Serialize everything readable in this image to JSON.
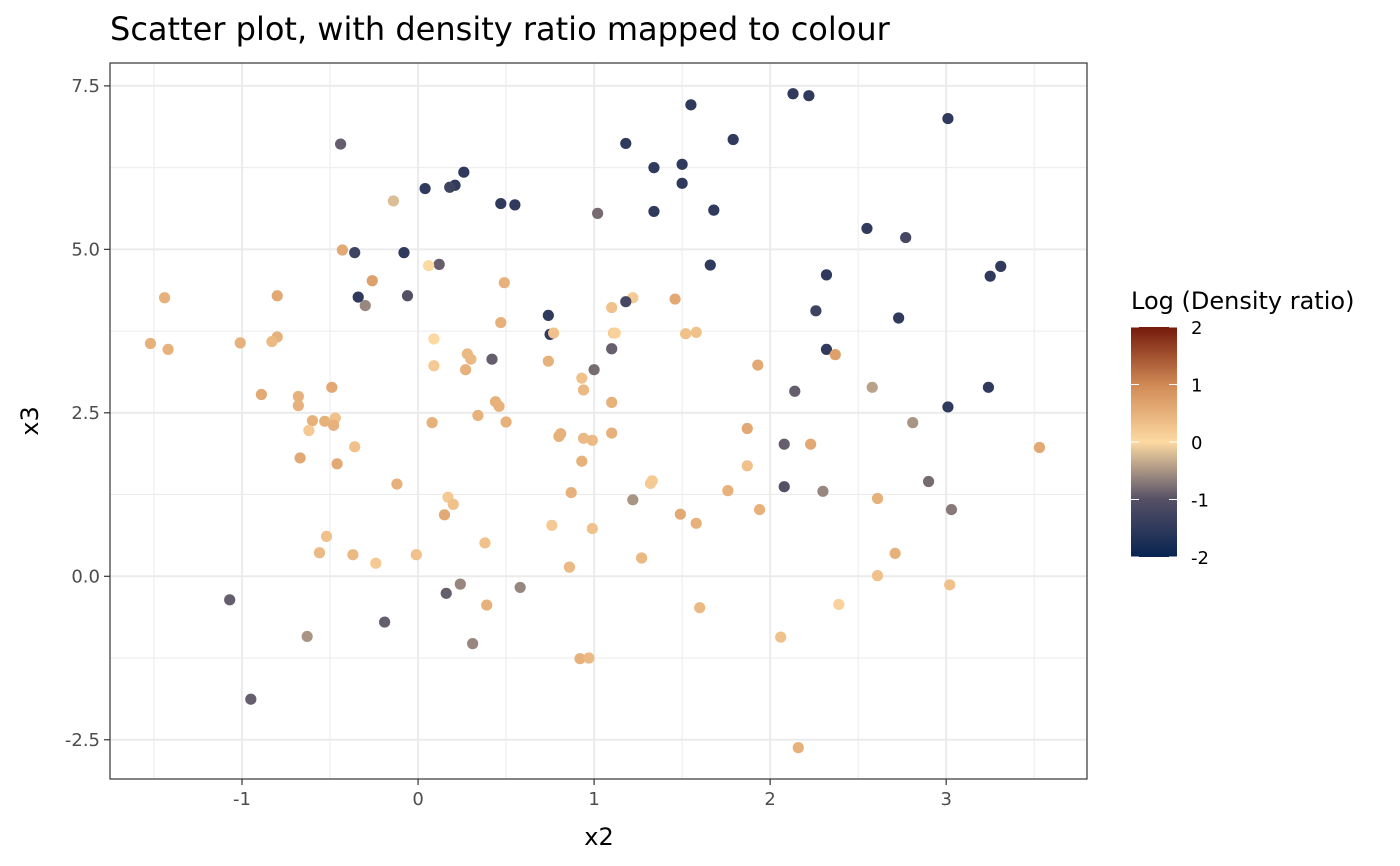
{
  "chart_data": {
    "type": "scatter",
    "title": "Scatter plot, with density ratio mapped to colour",
    "xlabel": "x2",
    "ylabel": "x3",
    "xlim": [
      -1.75,
      3.8
    ],
    "ylim": [
      -3.1,
      7.85
    ],
    "x_ticks": [
      -1,
      0,
      1,
      2,
      3
    ],
    "x_tick_labels": [
      "-1",
      "0",
      "1",
      "2",
      "3"
    ],
    "y_ticks": [
      -2.5,
      0.0,
      2.5,
      5.0,
      7.5
    ],
    "y_tick_labels": [
      "-2.5",
      "0.0",
      "2.5",
      "5.0",
      "7.5"
    ],
    "grid": true,
    "legend": {
      "title": "Log (Density ratio)",
      "placement": "right",
      "range": [
        -2,
        2
      ],
      "ticks": [
        2,
        1,
        0,
        -1,
        -2
      ],
      "tick_labels": [
        "2",
        "1",
        "0",
        "-1",
        "-2"
      ],
      "colors": [
        "#082451",
        "#555066",
        "#FDD9A2",
        "#D08955",
        "#741A0B"
      ]
    },
    "points": [
      {
        "x": 2.13,
        "y": 7.38,
        "c": -1.5
      },
      {
        "x": 2.22,
        "y": 7.35,
        "c": -1.5
      },
      {
        "x": 1.55,
        "y": 7.21,
        "c": -1.5
      },
      {
        "x": 3.01,
        "y": 7.0,
        "c": -1.5
      },
      {
        "x": 1.79,
        "y": 6.68,
        "c": -1.5
      },
      {
        "x": 1.18,
        "y": 6.62,
        "c": -1.5
      },
      {
        "x": -0.44,
        "y": 6.61,
        "c": -0.9
      },
      {
        "x": 1.5,
        "y": 6.3,
        "c": -1.5
      },
      {
        "x": 1.34,
        "y": 6.25,
        "c": -1.5
      },
      {
        "x": 0.26,
        "y": 6.18,
        "c": -1.5
      },
      {
        "x": 1.5,
        "y": 6.01,
        "c": -1.5
      },
      {
        "x": 0.21,
        "y": 5.98,
        "c": -1.5
      },
      {
        "x": 0.18,
        "y": 5.95,
        "c": -1.3
      },
      {
        "x": 0.04,
        "y": 5.93,
        "c": -1.5
      },
      {
        "x": -0.14,
        "y": 5.74,
        "c": -0.2
      },
      {
        "x": 0.47,
        "y": 5.7,
        "c": -1.5
      },
      {
        "x": 0.55,
        "y": 5.68,
        "c": -1.5
      },
      {
        "x": 1.68,
        "y": 5.6,
        "c": -1.5
      },
      {
        "x": 1.34,
        "y": 5.58,
        "c": -1.5
      },
      {
        "x": 1.02,
        "y": 5.55,
        "c": -0.8
      },
      {
        "x": 2.55,
        "y": 5.32,
        "c": -1.5
      },
      {
        "x": 2.77,
        "y": 5.18,
        "c": -1.2
      },
      {
        "x": -0.43,
        "y": 4.99,
        "c": 0.6
      },
      {
        "x": -0.36,
        "y": 4.95,
        "c": -1.3
      },
      {
        "x": -0.08,
        "y": 4.95,
        "c": -1.5
      },
      {
        "x": 0.12,
        "y": 4.77,
        "c": -0.9
      },
      {
        "x": 0.06,
        "y": 4.75,
        "c": 0.0
      },
      {
        "x": 1.66,
        "y": 4.76,
        "c": -1.5
      },
      {
        "x": 3.31,
        "y": 4.74,
        "c": -1.5
      },
      {
        "x": 2.32,
        "y": 4.61,
        "c": -1.5
      },
      {
        "x": 3.25,
        "y": 4.59,
        "c": -1.5
      },
      {
        "x": -0.26,
        "y": 4.52,
        "c": 0.7
      },
      {
        "x": 0.49,
        "y": 4.49,
        "c": 0.5
      },
      {
        "x": -0.8,
        "y": 4.29,
        "c": 0.6
      },
      {
        "x": -0.06,
        "y": 4.29,
        "c": -1.0
      },
      {
        "x": -0.34,
        "y": 4.27,
        "c": -1.5
      },
      {
        "x": -1.44,
        "y": 4.26,
        "c": 0.5
      },
      {
        "x": 1.22,
        "y": 4.26,
        "c": 0.2
      },
      {
        "x": 1.46,
        "y": 4.24,
        "c": 0.6
      },
      {
        "x": 1.18,
        "y": 4.2,
        "c": -1.2
      },
      {
        "x": -0.3,
        "y": 4.14,
        "c": -0.6
      },
      {
        "x": 1.1,
        "y": 4.11,
        "c": 0.3
      },
      {
        "x": 2.26,
        "y": 4.06,
        "c": -1.3
      },
      {
        "x": 0.74,
        "y": 3.99,
        "c": -1.5
      },
      {
        "x": 2.73,
        "y": 3.95,
        "c": -1.5
      },
      {
        "x": 0.47,
        "y": 3.88,
        "c": 0.5
      },
      {
        "x": 0.75,
        "y": 3.7,
        "c": -1.5
      },
      {
        "x": 0.77,
        "y": 3.72,
        "c": 0.3
      },
      {
        "x": 1.11,
        "y": 3.72,
        "c": 0.2
      },
      {
        "x": 1.12,
        "y": 3.72,
        "c": 0.1
      },
      {
        "x": 1.52,
        "y": 3.71,
        "c": 0.3
      },
      {
        "x": 1.58,
        "y": 3.73,
        "c": 0.3
      },
      {
        "x": -0.8,
        "y": 3.66,
        "c": 0.5
      },
      {
        "x": 0.09,
        "y": 3.63,
        "c": 0.0
      },
      {
        "x": -0.83,
        "y": 3.59,
        "c": 0.4
      },
      {
        "x": -1.52,
        "y": 3.56,
        "c": 0.5
      },
      {
        "x": -1.01,
        "y": 3.57,
        "c": 0.5
      },
      {
        "x": 1.1,
        "y": 3.48,
        "c": -0.9
      },
      {
        "x": 2.32,
        "y": 3.47,
        "c": -1.5
      },
      {
        "x": -1.42,
        "y": 3.47,
        "c": 0.5
      },
      {
        "x": 2.37,
        "y": 3.39,
        "c": 0.7
      },
      {
        "x": 0.28,
        "y": 3.4,
        "c": 0.4
      },
      {
        "x": 0.42,
        "y": 3.32,
        "c": -0.9
      },
      {
        "x": 0.3,
        "y": 3.32,
        "c": 0.4
      },
      {
        "x": 0.74,
        "y": 3.29,
        "c": 0.5
      },
      {
        "x": 1.93,
        "y": 3.23,
        "c": 0.6
      },
      {
        "x": 0.09,
        "y": 3.22,
        "c": 0.2
      },
      {
        "x": 0.27,
        "y": 3.16,
        "c": 0.5
      },
      {
        "x": 1.0,
        "y": 3.16,
        "c": -0.8
      },
      {
        "x": 0.93,
        "y": 3.03,
        "c": 0.3
      },
      {
        "x": 2.58,
        "y": 2.89,
        "c": -0.4
      },
      {
        "x": -0.49,
        "y": 2.89,
        "c": 0.6
      },
      {
        "x": 0.94,
        "y": 2.85,
        "c": 0.4
      },
      {
        "x": 2.14,
        "y": 2.83,
        "c": -0.9
      },
      {
        "x": -0.89,
        "y": 2.78,
        "c": 0.6
      },
      {
        "x": -0.68,
        "y": 2.75,
        "c": 0.5
      },
      {
        "x": 1.1,
        "y": 2.66,
        "c": 0.5
      },
      {
        "x": 0.44,
        "y": 2.67,
        "c": 0.5
      },
      {
        "x": -0.68,
        "y": 2.61,
        "c": 0.5
      },
      {
        "x": 0.46,
        "y": 2.6,
        "c": 0.5
      },
      {
        "x": 3.24,
        "y": 2.89,
        "c": -1.5
      },
      {
        "x": 3.01,
        "y": 2.59,
        "c": -1.5
      },
      {
        "x": 0.34,
        "y": 2.46,
        "c": 0.5
      },
      {
        "x": -0.47,
        "y": 2.42,
        "c": 0.3
      },
      {
        "x": -0.6,
        "y": 2.38,
        "c": 0.5
      },
      {
        "x": -0.53,
        "y": 2.37,
        "c": 0.5
      },
      {
        "x": 0.5,
        "y": 2.36,
        "c": 0.5
      },
      {
        "x": 2.81,
        "y": 2.35,
        "c": -0.5
      },
      {
        "x": 0.08,
        "y": 2.35,
        "c": 0.5
      },
      {
        "x": -0.48,
        "y": 2.31,
        "c": 0.5
      },
      {
        "x": 1.87,
        "y": 2.26,
        "c": 0.6
      },
      {
        "x": -0.62,
        "y": 2.23,
        "c": 0.2
      },
      {
        "x": 1.1,
        "y": 2.19,
        "c": 0.5
      },
      {
        "x": 0.81,
        "y": 2.18,
        "c": 0.5
      },
      {
        "x": 0.8,
        "y": 2.14,
        "c": 0.5
      },
      {
        "x": 0.94,
        "y": 2.11,
        "c": 0.4
      },
      {
        "x": 0.99,
        "y": 2.08,
        "c": 0.4
      },
      {
        "x": 2.08,
        "y": 2.02,
        "c": -0.9
      },
      {
        "x": 2.23,
        "y": 2.02,
        "c": 0.6
      },
      {
        "x": -0.36,
        "y": 1.98,
        "c": 0.3
      },
      {
        "x": 3.53,
        "y": 1.97,
        "c": 0.6
      },
      {
        "x": -0.67,
        "y": 1.81,
        "c": 0.6
      },
      {
        "x": 0.93,
        "y": 1.76,
        "c": 0.5
      },
      {
        "x": -0.46,
        "y": 1.72,
        "c": 0.6
      },
      {
        "x": 1.87,
        "y": 1.69,
        "c": 0.3
      },
      {
        "x": 1.33,
        "y": 1.46,
        "c": 0.2
      },
      {
        "x": 1.32,
        "y": 1.42,
        "c": 0.2
      },
      {
        "x": 2.9,
        "y": 1.45,
        "c": -0.8
      },
      {
        "x": -0.12,
        "y": 1.41,
        "c": 0.5
      },
      {
        "x": 2.08,
        "y": 1.37,
        "c": -1.0
      },
      {
        "x": 1.76,
        "y": 1.31,
        "c": 0.5
      },
      {
        "x": 2.3,
        "y": 1.3,
        "c": -0.6
      },
      {
        "x": 0.87,
        "y": 1.28,
        "c": 0.5
      },
      {
        "x": 0.17,
        "y": 1.21,
        "c": 0.2
      },
      {
        "x": 2.61,
        "y": 1.19,
        "c": 0.5
      },
      {
        "x": 1.22,
        "y": 1.17,
        "c": -0.5
      },
      {
        "x": 0.2,
        "y": 1.1,
        "c": 0.3
      },
      {
        "x": 3.03,
        "y": 1.02,
        "c": -0.7
      },
      {
        "x": 1.94,
        "y": 1.02,
        "c": 0.5
      },
      {
        "x": 1.49,
        "y": 0.95,
        "c": 0.6
      },
      {
        "x": 0.15,
        "y": 0.94,
        "c": 0.6
      },
      {
        "x": 1.58,
        "y": 0.81,
        "c": 0.5
      },
      {
        "x": 0.76,
        "y": 0.78,
        "c": 0.2
      },
      {
        "x": 0.99,
        "y": 0.73,
        "c": 0.3
      },
      {
        "x": -0.52,
        "y": 0.61,
        "c": 0.3
      },
      {
        "x": 0.38,
        "y": 0.51,
        "c": 0.3
      },
      {
        "x": -0.56,
        "y": 0.36,
        "c": 0.4
      },
      {
        "x": 2.71,
        "y": 0.35,
        "c": 0.5
      },
      {
        "x": -0.37,
        "y": 0.33,
        "c": 0.4
      },
      {
        "x": -0.01,
        "y": 0.33,
        "c": 0.3
      },
      {
        "x": 1.27,
        "y": 0.28,
        "c": 0.4
      },
      {
        "x": -0.24,
        "y": 0.2,
        "c": 0.2
      },
      {
        "x": 0.86,
        "y": 0.14,
        "c": 0.4
      },
      {
        "x": 2.61,
        "y": 0.01,
        "c": 0.3
      },
      {
        "x": 0.24,
        "y": -0.12,
        "c": -0.6
      },
      {
        "x": 3.02,
        "y": -0.13,
        "c": 0.3
      },
      {
        "x": 0.58,
        "y": -0.17,
        "c": -0.6
      },
      {
        "x": 0.16,
        "y": -0.26,
        "c": -0.9
      },
      {
        "x": -1.07,
        "y": -0.36,
        "c": -0.9
      },
      {
        "x": 2.39,
        "y": -0.43,
        "c": 0.1
      },
      {
        "x": 0.39,
        "y": -0.44,
        "c": 0.5
      },
      {
        "x": 1.6,
        "y": -0.48,
        "c": 0.4
      },
      {
        "x": -0.19,
        "y": -0.7,
        "c": -0.9
      },
      {
        "x": -0.63,
        "y": -0.92,
        "c": -0.5
      },
      {
        "x": 2.06,
        "y": -0.93,
        "c": 0.3
      },
      {
        "x": 0.31,
        "y": -1.03,
        "c": -0.6
      },
      {
        "x": 0.92,
        "y": -1.26,
        "c": 0.5
      },
      {
        "x": 0.97,
        "y": -1.25,
        "c": 0.4
      },
      {
        "x": -0.95,
        "y": -1.88,
        "c": -0.9
      },
      {
        "x": 2.16,
        "y": -2.62,
        "c": 0.5
      }
    ]
  }
}
